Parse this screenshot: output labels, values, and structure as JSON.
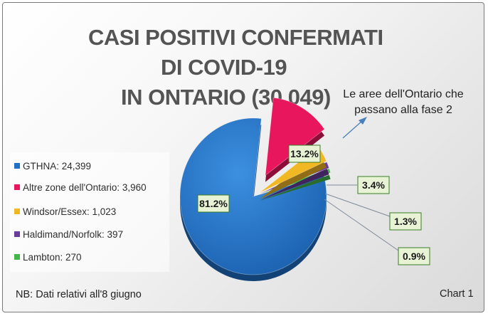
{
  "chart_data": {
    "type": "pie",
    "title": [
      "CASI POSITIVI CONFERMATI",
      "DI COVID-19",
      "IN ONTARIO (30.049)"
    ],
    "slices": [
      {
        "label": "GTHNA: 24,399",
        "value": 24399,
        "percent_label": "81.2%",
        "color": "#1f6fc5",
        "exploded": false
      },
      {
        "label": "Altre zone dell'Ontario: 3,960",
        "value": 3960,
        "percent_label": "13.2%",
        "color": "#e8175d",
        "exploded": true
      },
      {
        "label": "Windsor/Essex: 1,023",
        "value": 1023,
        "percent_label": "3.4%",
        "color": "#f2b824",
        "exploded": true
      },
      {
        "label": "Haldimand/Norfolk: 397",
        "value": 397,
        "percent_label": "1.3%",
        "color": "#6a3d9a",
        "exploded": true
      },
      {
        "label": "Lambton: 270",
        "value": 270,
        "percent_label": "0.9%",
        "color": "#45b649",
        "exploded": true
      }
    ],
    "legend_position": "left",
    "annotation": "Le aree dell'Ontario che passano alla fase 2",
    "label_box_color": "#e8f3d6",
    "label_box_border": "#3a7d22"
  },
  "footer": {
    "note": "NB:  Dati relativi all'8 giugno",
    "chart_number": "Chart 1"
  }
}
